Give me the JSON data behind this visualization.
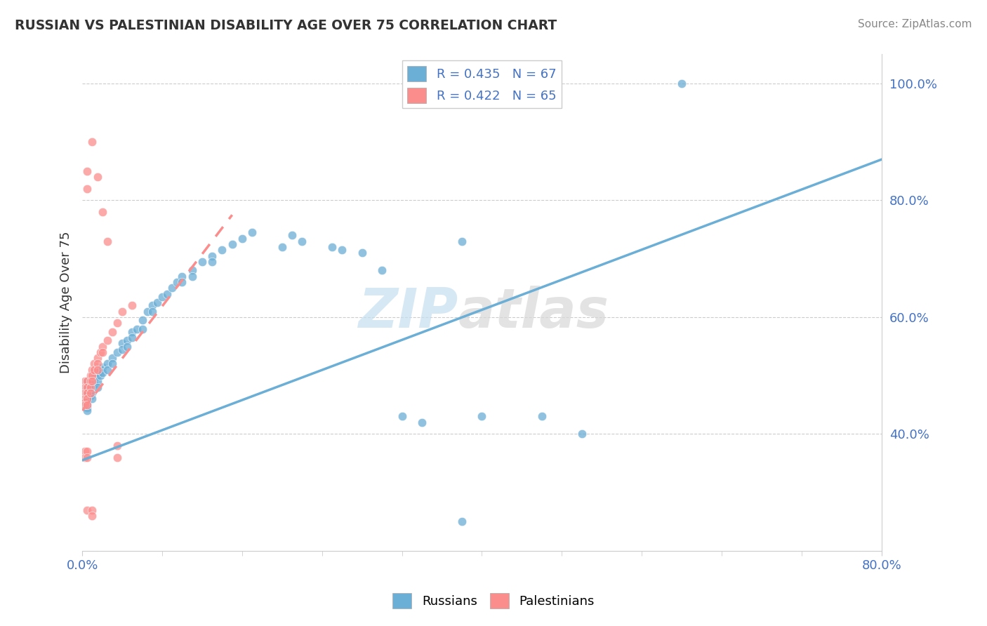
{
  "title": "RUSSIAN VS PALESTINIAN DISABILITY AGE OVER 75 CORRELATION CHART",
  "source": "Source: ZipAtlas.com",
  "ylabel": "Disability Age Over 75",
  "xlim": [
    0.0,
    0.8
  ],
  "ylim": [
    0.2,
    1.05
  ],
  "xtick_positions": [
    0.0,
    0.8
  ],
  "xtick_labels": [
    "0.0%",
    "80.0%"
  ],
  "ytick_positions": [
    0.4,
    0.6,
    0.8,
    1.0
  ],
  "ytick_labels": [
    "40.0%",
    "60.0%",
    "80.0%",
    "100.0%"
  ],
  "russian_color": "#6baed6",
  "palestinian_color": "#fc8d8d",
  "russian_R": 0.435,
  "russian_N": 67,
  "palestinian_R": 0.422,
  "palestinian_N": 65,
  "watermark_zip": "ZIP",
  "watermark_atlas": "atlas",
  "background_color": "#ffffff",
  "russian_scatter": [
    [
      0.005,
      0.49
    ],
    [
      0.005,
      0.48
    ],
    [
      0.005,
      0.47
    ],
    [
      0.005,
      0.46
    ],
    [
      0.005,
      0.455
    ],
    [
      0.005,
      0.45
    ],
    [
      0.005,
      0.445
    ],
    [
      0.005,
      0.44
    ],
    [
      0.008,
      0.485
    ],
    [
      0.008,
      0.475
    ],
    [
      0.008,
      0.465
    ],
    [
      0.01,
      0.49
    ],
    [
      0.01,
      0.48
    ],
    [
      0.01,
      0.47
    ],
    [
      0.01,
      0.46
    ],
    [
      0.012,
      0.495
    ],
    [
      0.012,
      0.485
    ],
    [
      0.015,
      0.5
    ],
    [
      0.015,
      0.49
    ],
    [
      0.015,
      0.48
    ],
    [
      0.018,
      0.51
    ],
    [
      0.018,
      0.5
    ],
    [
      0.02,
      0.515
    ],
    [
      0.02,
      0.505
    ],
    [
      0.025,
      0.52
    ],
    [
      0.025,
      0.51
    ],
    [
      0.03,
      0.53
    ],
    [
      0.03,
      0.52
    ],
    [
      0.035,
      0.54
    ],
    [
      0.04,
      0.555
    ],
    [
      0.04,
      0.545
    ],
    [
      0.045,
      0.56
    ],
    [
      0.045,
      0.55
    ],
    [
      0.05,
      0.575
    ],
    [
      0.05,
      0.565
    ],
    [
      0.055,
      0.58
    ],
    [
      0.06,
      0.595
    ],
    [
      0.06,
      0.58
    ],
    [
      0.065,
      0.61
    ],
    [
      0.07,
      0.62
    ],
    [
      0.07,
      0.61
    ],
    [
      0.075,
      0.625
    ],
    [
      0.08,
      0.635
    ],
    [
      0.085,
      0.64
    ],
    [
      0.09,
      0.65
    ],
    [
      0.095,
      0.66
    ],
    [
      0.1,
      0.67
    ],
    [
      0.1,
      0.66
    ],
    [
      0.11,
      0.68
    ],
    [
      0.11,
      0.67
    ],
    [
      0.12,
      0.695
    ],
    [
      0.13,
      0.705
    ],
    [
      0.13,
      0.695
    ],
    [
      0.14,
      0.715
    ],
    [
      0.15,
      0.725
    ],
    [
      0.16,
      0.735
    ],
    [
      0.17,
      0.745
    ],
    [
      0.2,
      0.72
    ],
    [
      0.21,
      0.74
    ],
    [
      0.22,
      0.73
    ],
    [
      0.25,
      0.72
    ],
    [
      0.26,
      0.715
    ],
    [
      0.28,
      0.71
    ],
    [
      0.3,
      0.68
    ],
    [
      0.32,
      0.43
    ],
    [
      0.34,
      0.42
    ],
    [
      0.38,
      0.25
    ],
    [
      0.4,
      0.43
    ],
    [
      0.46,
      0.43
    ],
    [
      0.5,
      0.4
    ],
    [
      0.38,
      0.73
    ],
    [
      0.6,
      1.0
    ]
  ],
  "palestinian_scatter": [
    [
      0.003,
      0.49
    ],
    [
      0.003,
      0.48
    ],
    [
      0.003,
      0.47
    ],
    [
      0.003,
      0.46
    ],
    [
      0.003,
      0.455
    ],
    [
      0.003,
      0.45
    ],
    [
      0.003,
      0.37
    ],
    [
      0.003,
      0.36
    ],
    [
      0.005,
      0.49
    ],
    [
      0.005,
      0.48
    ],
    [
      0.005,
      0.47
    ],
    [
      0.005,
      0.46
    ],
    [
      0.005,
      0.45
    ],
    [
      0.005,
      0.37
    ],
    [
      0.005,
      0.36
    ],
    [
      0.008,
      0.5
    ],
    [
      0.008,
      0.49
    ],
    [
      0.008,
      0.48
    ],
    [
      0.008,
      0.47
    ],
    [
      0.01,
      0.51
    ],
    [
      0.01,
      0.5
    ],
    [
      0.01,
      0.49
    ],
    [
      0.012,
      0.52
    ],
    [
      0.012,
      0.51
    ],
    [
      0.015,
      0.53
    ],
    [
      0.015,
      0.52
    ],
    [
      0.015,
      0.51
    ],
    [
      0.018,
      0.54
    ],
    [
      0.02,
      0.55
    ],
    [
      0.02,
      0.54
    ],
    [
      0.025,
      0.56
    ],
    [
      0.03,
      0.575
    ],
    [
      0.035,
      0.59
    ],
    [
      0.04,
      0.61
    ],
    [
      0.05,
      0.62
    ],
    [
      0.005,
      0.85
    ],
    [
      0.005,
      0.82
    ],
    [
      0.01,
      0.9
    ],
    [
      0.015,
      0.84
    ],
    [
      0.02,
      0.78
    ],
    [
      0.025,
      0.73
    ],
    [
      0.035,
      0.38
    ],
    [
      0.035,
      0.36
    ],
    [
      0.005,
      0.27
    ],
    [
      0.01,
      0.27
    ],
    [
      0.01,
      0.26
    ]
  ],
  "russian_line_x": [
    0.0,
    0.8
  ],
  "russian_line_y": [
    0.355,
    0.87
  ],
  "palestinian_line_x": [
    0.0,
    0.15
  ],
  "palestinian_line_y": [
    0.44,
    0.775
  ]
}
